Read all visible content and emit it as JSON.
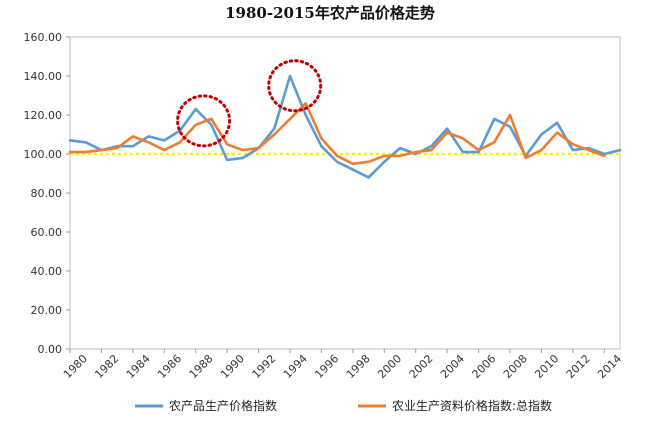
{
  "chart_data": {
    "type": "line",
    "title": "1980-2015年农产品价格走势",
    "xlabel": "",
    "ylabel": "",
    "ylim": [
      0,
      160
    ],
    "yticks": [
      "0.00",
      "20.00",
      "40.00",
      "60.00",
      "80.00",
      "100.00",
      "120.00",
      "140.00",
      "160.00"
    ],
    "xlim": [
      1980,
      2015
    ],
    "xticks": [
      "1980",
      "1982",
      "1984",
      "1986",
      "1988",
      "1990",
      "1992",
      "1994",
      "1996",
      "1998",
      "2000",
      "2002",
      "2004",
      "2006",
      "2008",
      "2010",
      "2012",
      "2014"
    ],
    "grid": false,
    "legend_position": "bottom",
    "x": [
      1980,
      1981,
      1982,
      1983,
      1984,
      1985,
      1986,
      1987,
      1988,
      1989,
      1990,
      1991,
      1992,
      1993,
      1994,
      1995,
      1996,
      1997,
      1998,
      1999,
      2000,
      2001,
      2002,
      2003,
      2004,
      2005,
      2006,
      2007,
      2008,
      2009,
      2010,
      2011,
      2012,
      2013,
      2014,
      2015
    ],
    "series": [
      {
        "name": "农产品生产价格指数",
        "color": "#5b9bd5",
        "values": [
          107,
          106,
          102,
          104,
          104,
          109,
          107,
          112,
          123,
          115,
          97,
          98,
          103,
          113,
          140,
          120,
          104,
          96,
          92,
          88,
          96,
          103,
          100,
          104,
          113,
          101,
          101,
          118,
          114,
          99,
          110,
          116,
          102,
          103,
          100,
          102
        ]
      },
      {
        "name": "农业生产资料价格指数:总指数",
        "color": "#ed7d31",
        "values": [
          101,
          101,
          102,
          103,
          109,
          106,
          102,
          106,
          115,
          118,
          105,
          102,
          103,
          110,
          118,
          126,
          108,
          99,
          95,
          96,
          99,
          99,
          101,
          102,
          111,
          108,
          102,
          106,
          120,
          98,
          102,
          111,
          105,
          102,
          99,
          null
        ]
      }
    ],
    "reference_line": {
      "value": 100,
      "color": "#f2f21a"
    },
    "annotations": [
      {
        "type": "dotted-circle",
        "x": 1988.5,
        "y": 117,
        "color": "#c00000"
      },
      {
        "type": "dotted-circle",
        "x": 1994.3,
        "y": 135,
        "color": "#c00000"
      }
    ]
  }
}
